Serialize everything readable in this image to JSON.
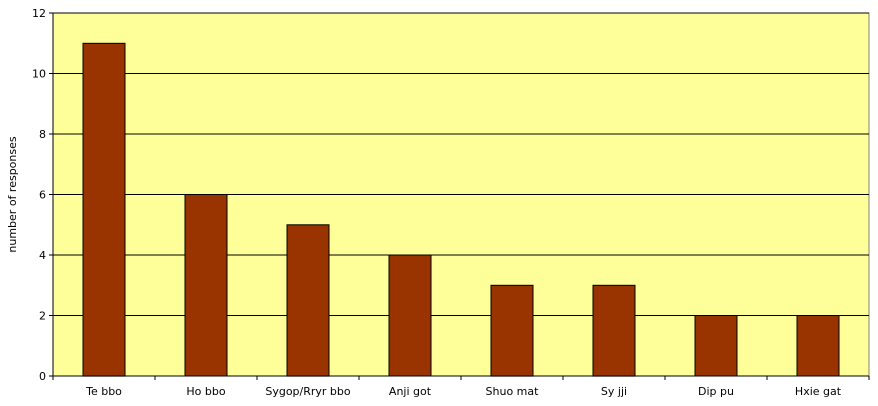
{
  "chart_data": {
    "type": "bar",
    "title": "",
    "xlabel": "",
    "ylabel": "number of responses",
    "categories": [
      "Te bbo",
      "Ho bbo",
      "Sygop/Rryr bbo",
      "Anji got",
      "Shuo mat",
      "Sy jji",
      "Dip pu",
      "Hxie gat"
    ],
    "values": [
      11,
      6,
      5,
      4,
      3,
      3,
      2,
      2
    ],
    "ylim": [
      0,
      12
    ],
    "yticks": [
      0,
      2,
      4,
      6,
      8,
      10,
      12
    ],
    "grid": true,
    "legend": "none",
    "colors": {
      "bar_fill": "#993300",
      "bar_stroke": "#000000",
      "plot_background": "#FFFF99",
      "gridline": "#000000"
    }
  }
}
